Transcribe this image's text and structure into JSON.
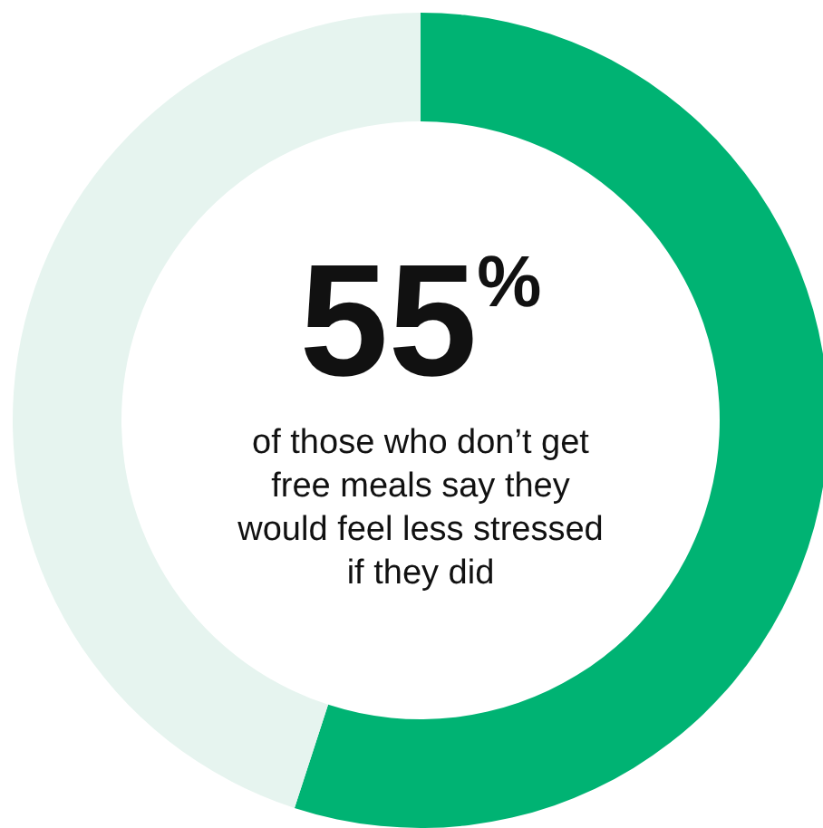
{
  "chart_data": {
    "type": "donut",
    "categories": [
      null,
      null
    ],
    "values": [
      55,
      45
    ],
    "colors": [
      "#00b373",
      "#e6f4ef"
    ],
    "value_labels": [
      "55$^{%}$",
      null
    ],
    "annotations": [
      "of those who don’t get free meals say they would feel less stressed if they did"
    ]
  }
}
